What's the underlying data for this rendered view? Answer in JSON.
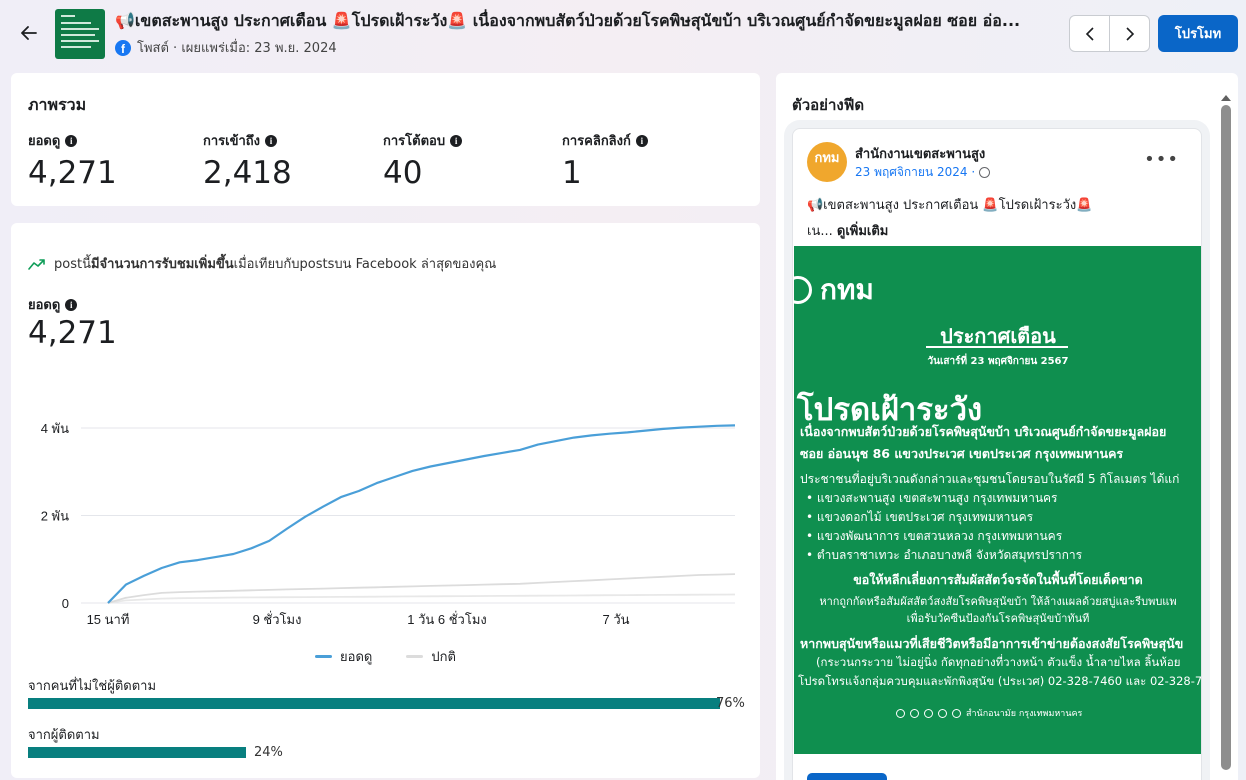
{
  "header": {
    "post_title": "📢เขตสะพานสูง ประกาศเตือน 🚨โปรดเฝ้าระวัง🚨 เนื่องจากพบสัตว์ป่วยด้วยโรคพิษสุนัขบ้า บริเวณศูนย์กำจัดขยะมูลฝอย ซอย อ่อ...",
    "post_meta": "โพสต์ · เผยแพร่เมื่อ: 23 พ.ย. 2024",
    "promote_label": "โปรโมท",
    "icons": [
      "back-arrow-icon",
      "facebook-icon",
      "chevron-left-icon",
      "chevron-right-icon"
    ]
  },
  "overview": {
    "title": "ภาพรวม",
    "metrics": [
      {
        "label": "ยอดดู",
        "value": "4,271"
      },
      {
        "label": "การเข้าถึง",
        "value": "2,418"
      },
      {
        "label": "การโต้ตอบ",
        "value": "40"
      },
      {
        "label": "การคลิกลิงก์",
        "value": "1"
      }
    ]
  },
  "performance": {
    "trend_prefix": "postนี้",
    "trend_bold": "มีจำนวนการรับชมเพิ่มขึ้น",
    "trend_suffix": "เมื่อเทียบกับpostsบน Facebook ล่าสุดของคุณ",
    "views_label": "ยอดดู",
    "views_value": "4,271",
    "legend": [
      {
        "label": "ยอดดู",
        "color": "#4a9fd8"
      },
      {
        "label": "ปกติ",
        "color": "#dcdcdc"
      }
    ],
    "sources": [
      {
        "label": "จากคนที่ไม่ใช่ผู้ติดตาม",
        "percent": 76,
        "percent_label": "76%"
      },
      {
        "label": "จากผู้ติดตาม",
        "percent": 24,
        "percent_label": "24%"
      }
    ],
    "bar_color": "#087f7f"
  },
  "chart_data": {
    "type": "line",
    "title": "",
    "xlabel": "",
    "ylabel": "",
    "x_tick_labels": [
      "15 นาที",
      "9 ชั่วโมง",
      "1 วัน 6 ชั่วโมง",
      "7 วัน"
    ],
    "y_tick_labels": [
      "0",
      "2 พัน",
      "4 พัน"
    ],
    "ylim": [
      0,
      4000
    ],
    "grid": true,
    "legend_position": "bottom",
    "series": [
      {
        "name": "ยอดดู",
        "color": "#4a9fd8",
        "values": [
          0,
          420,
          620,
          800,
          930,
          980,
          1050,
          1120,
          1250,
          1420,
          1700,
          1970,
          2200,
          2420,
          2560,
          2740,
          2880,
          3020,
          3120,
          3200,
          3280,
          3360,
          3430,
          3500,
          3620,
          3700,
          3780,
          3830,
          3870,
          3900,
          3940,
          3980,
          4010,
          4030,
          4050,
          4060
        ]
      },
      {
        "name": "ปกติ",
        "color": "#dcdcdc",
        "values": [
          0,
          120,
          180,
          230,
          250,
          260,
          270,
          280,
          290,
          300,
          310,
          320,
          330,
          340,
          350,
          360,
          370,
          380,
          390,
          400,
          410,
          420,
          430,
          440,
          460,
          480,
          500,
          520,
          540,
          560,
          580,
          600,
          620,
          640,
          650,
          660
        ]
      },
      {
        "name": "ปกติ-2",
        "color": "#e8e8e8",
        "values": [
          0,
          60,
          80,
          100,
          110,
          115,
          120,
          125,
          128,
          130,
          132,
          135,
          138,
          140,
          142,
          145,
          148,
          150,
          152,
          155,
          158,
          160,
          162,
          165,
          168,
          170,
          172,
          175,
          178,
          180,
          182,
          185,
          188,
          190,
          192,
          195
        ]
      }
    ]
  },
  "preview": {
    "title": "ตัวอย่างฟีด",
    "page_name": "สำนักงานเขตสะพานสูง",
    "post_date": "23 พฤศจิกายน 2024 ·",
    "avatar_text": "กทม",
    "post_text": "📢เขตสะพานสูง ประกาศเตือน 🚨โปรดเฝ้าระวัง🚨",
    "post_text_2": "เน...",
    "see_more": "ดูเพิ่มเติม",
    "image": {
      "logo": "กทม",
      "heading": "ประกาศเตือน",
      "date": "วันเสาร์ที่ 23 พฤศจิกายน 2567",
      "big": "โปรดเฝ้าระวัง",
      "lines": [
        "เนื่องจากพบสัตว์ป่วยด้วยโรคพิษสุนัขบ้า บริเวณศูนย์กำจัดขยะมูลฝอย",
        "ซอย อ่อนนุช 86 แขวงประเวศ เขตประเวศ กรุงเทพมหานคร",
        "ประชาชนที่อยู่บริเวณดังกล่าวและชุมชนโดยรอบในรัศมี 5 กิโลเมตร ได้แก่",
        "•  แขวงสะพานสูง เขตสะพานสูง กรุงเทพมหานคร",
        "•  แขวงดอกไม้ เขตประเวศ กรุงเทพมหานคร",
        "•  แขวงพัฒนาการ เขตสวนหลวง กรุงเทพมหานคร",
        "•  ตำบลราชาเทวะ อำเภอบางพลี จังหวัดสมุทรปราการ",
        "ขอให้หลีกเลี่ยงการสัมผัสสัตว์จรจัดในพื้นที่โดยเด็ดขาด",
        "หากถูกกัดหรือสัมผัสสัตว์สงสัยโรคพิษสุนัขบ้า ให้ล้างแผลด้วยสบู่และรีบพบแพ",
        "เพื่อรับวัคซีนป้องกันโรคพิษสุนัขบ้าทันที",
        "หากพบสุนัขหรือแมวที่เสียชีวิตหรือมีอาการเข้าข่ายต้องสงสัยโรคพิษสุนัข",
        "(กระวนกระวาย ไม่อยู่นิ่ง กัดทุกอย่างที่วางหน้า ตัวแข็ง น้ำลายไหล ลิ้นห้อย",
        "โปรดโทรแจ้งกลุ่มควบคุมและพักพิงสุนัข (ประเวศ) 02-328-7460 และ 02-328-7"
      ],
      "footer": "สำนักอนามัย กรุงเทพมหานคร"
    }
  }
}
